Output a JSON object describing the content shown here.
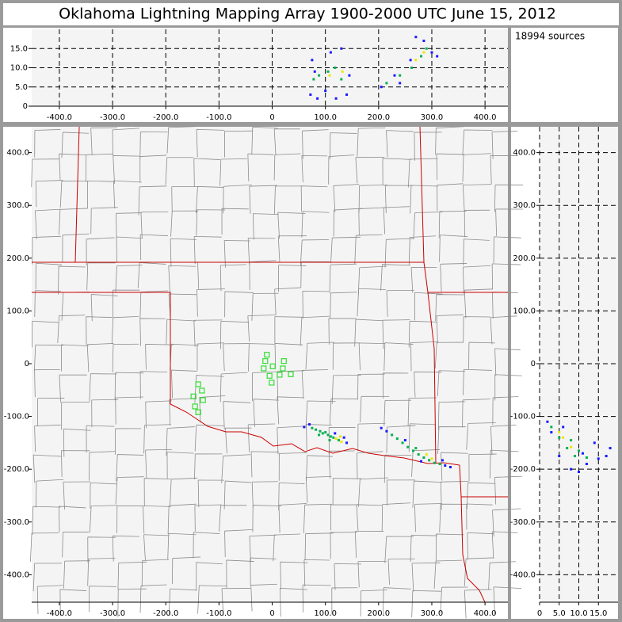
{
  "title": "Oklahoma Lightning Mapping Array   1900-2000 UTC  June 15, 2012",
  "annotation": "18994 sources",
  "chart_data": [
    {
      "type": "scatter",
      "grid": "dashed",
      "xlim": [
        -452,
        443
      ],
      "ylim": [
        0,
        20
      ],
      "xticks": [
        {
          "value": -400,
          "label": "-400.0"
        },
        {
          "value": -300,
          "label": "-300.0"
        },
        {
          "value": -200,
          "label": "-200.0"
        },
        {
          "value": -100,
          "label": "-100.0"
        },
        0,
        {
          "value": 100,
          "label": "100.0"
        },
        {
          "value": 200,
          "label": "200.0"
        },
        {
          "value": 300,
          "label": "300.0"
        },
        {
          "value": 400,
          "label": "400.0"
        }
      ],
      "yticks": [
        0,
        {
          "value": 5,
          "label": "5.0"
        },
        {
          "value": 10,
          "label": "10.0"
        },
        {
          "value": 15,
          "label": "15.0"
        }
      ],
      "series": [
        {
          "color": "#1a1aff",
          "x": [
            72,
            75,
            80,
            100,
            110,
            130,
            145,
            140,
            85,
            120,
            205,
            230,
            260,
            285,
            300,
            270,
            240,
            310
          ],
          "values": [
            3,
            12,
            9,
            4,
            14,
            15,
            8,
            3,
            2,
            2,
            5,
            8,
            12,
            17,
            14,
            18,
            6,
            13
          ]
        },
        {
          "color": "#00b050",
          "x": [
            78,
            88,
            105,
            118,
            130,
            215,
            240,
            262,
            280,
            290
          ],
          "values": [
            7,
            8,
            9,
            10,
            7,
            6,
            8,
            10,
            13,
            15
          ]
        },
        {
          "color": "#e8e800",
          "x": [
            108,
            132,
            270,
            285
          ],
          "values": [
            8,
            9,
            12,
            14
          ]
        }
      ]
    },
    {
      "type": "scatter",
      "grid": false,
      "map": true,
      "xlim": [
        -452,
        443
      ],
      "ylim": [
        -452,
        449
      ],
      "xticks": [
        {
          "value": -400,
          "label": "-400.0"
        },
        {
          "value": -300,
          "label": "-300.0"
        },
        {
          "value": -200,
          "label": "-200.0"
        },
        {
          "value": -100,
          "label": "-100.0"
        },
        0,
        {
          "value": 100,
          "label": "100.0"
        },
        {
          "value": 200,
          "label": "200.0"
        },
        {
          "value": 300,
          "label": "300.0"
        },
        {
          "value": 400,
          "label": "400.0"
        }
      ],
      "yticks": [
        {
          "value": 400,
          "label": "400.0"
        },
        {
          "value": 300,
          "label": "300.0"
        },
        {
          "value": 200,
          "label": "200.0"
        },
        {
          "value": 100,
          "label": "100.0"
        },
        0,
        {
          "value": -100,
          "label": "-100.0"
        },
        {
          "value": -200,
          "label": "-200.0"
        },
        {
          "value": -300,
          "label": "-300.0"
        },
        {
          "value": -400,
          "label": "-400.0"
        }
      ],
      "series": [
        {
          "color": "#1a1aff",
          "x": [
            60,
            70,
            140,
            135,
            205,
            215,
            325,
            335,
            320,
            280,
            250,
            118
          ],
          "values": [
            -120,
            -115,
            -150,
            -140,
            -122,
            -128,
            -193,
            -196,
            -183,
            -185,
            -145,
            -132
          ]
        },
        {
          "color": "#00b050",
          "x": [
            75,
            82,
            90,
            95,
            100,
            105,
            110,
            115,
            125,
            225,
            235,
            245,
            255,
            265,
            275,
            285,
            295,
            305,
            315,
            88,
            108,
            270
          ],
          "values": [
            -122,
            -125,
            -128,
            -132,
            -130,
            -135,
            -138,
            -140,
            -145,
            -135,
            -142,
            -150,
            -158,
            -165,
            -172,
            -178,
            -183,
            -188,
            -190,
            -135,
            -145,
            -160
          ]
        },
        {
          "color": "#e8e800",
          "x": [
            120,
            128,
            130,
            290,
            300
          ],
          "values": [
            -142,
            -138,
            -148,
            -172,
            -180
          ]
        },
        {
          "color": "#33dd33",
          "marker": "square",
          "x": [
            -10,
            -13,
            1,
            -16,
            22,
            20,
            14,
            35,
            -5,
            -1,
            -139,
            -132,
            -148,
            -130,
            -145,
            -139
          ],
          "values": [
            17,
            5,
            -5,
            -9,
            5,
            -9,
            -21,
            -20,
            -23,
            -36,
            -39,
            -51,
            -62,
            -69,
            -81,
            -92
          ]
        }
      ]
    },
    {
      "type": "scatter",
      "grid": "dashed",
      "xlim": [
        0,
        20
      ],
      "ylim": [
        -452,
        449
      ],
      "xticks": [
        0,
        {
          "value": 5,
          "label": "5.0"
        },
        {
          "value": 10,
          "label": "10.0"
        },
        {
          "value": 15,
          "label": "15.0"
        }
      ],
      "yticks": [
        {
          "value": 400,
          "label": "400.0"
        },
        {
          "value": 300,
          "label": "300.0"
        },
        {
          "value": 200,
          "label": "200.0"
        },
        {
          "value": 100,
          "label": "100.0"
        },
        0,
        {
          "value": -100,
          "label": "-100.0"
        },
        {
          "value": -200,
          "label": "-200.0"
        },
        {
          "value": -300,
          "label": "-300.0"
        },
        {
          "value": -400,
          "label": "-400.0"
        }
      ],
      "series": [
        {
          "color": "#1a1aff",
          "x": [
            2,
            3,
            5,
            8,
            12,
            15,
            18,
            14,
            10,
            6,
            17,
            11
          ],
          "values": [
            -110,
            -130,
            -175,
            -200,
            -190,
            -180,
            -160,
            -150,
            -205,
            -120,
            -175,
            -170
          ]
        },
        {
          "color": "#00b050",
          "x": [
            3,
            5,
            7,
            9,
            10,
            8,
            12
          ],
          "values": [
            -120,
            -140,
            -160,
            -175,
            -165,
            -145,
            -178
          ]
        },
        {
          "color": "#e8e800",
          "x": [
            6,
            8,
            5
          ],
          "values": [
            -140,
            -158,
            -130
          ]
        }
      ]
    }
  ]
}
